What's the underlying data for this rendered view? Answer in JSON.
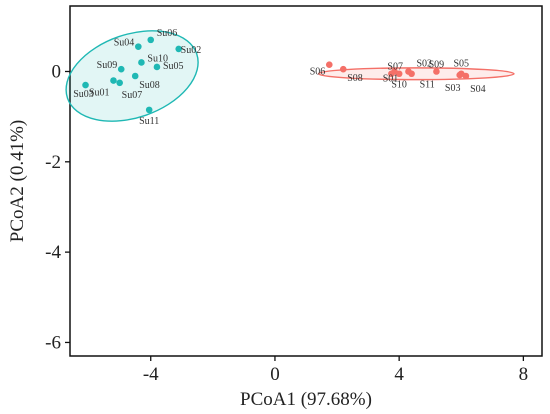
{
  "chart_data": {
    "type": "scatter",
    "title": "",
    "xlabel": "PCoA1 (97.68%)",
    "ylabel": "PCoA2 (0.41%)",
    "xlim": [
      -6.6,
      8.6
    ],
    "ylim": [
      -6.3,
      1.45
    ],
    "xticks": [
      -4,
      0,
      4,
      8
    ],
    "xtick_labels": [
      "-4",
      "0",
      "4",
      "8"
    ],
    "yticks": [
      0,
      -2,
      -4,
      -6
    ],
    "ytick_labels": [
      "0",
      "-2",
      "-4",
      "-6"
    ],
    "grid": false,
    "legend": "none",
    "series": [
      {
        "color": "#1fb8b4",
        "points": [
          {
            "label": "Su06",
            "x": -4.0,
            "y": 0.7
          },
          {
            "label": "Su04",
            "x": -4.4,
            "y": 0.55
          },
          {
            "label": "Su02",
            "x": -3.1,
            "y": 0.5
          },
          {
            "label": "Su10",
            "x": -4.3,
            "y": 0.2
          },
          {
            "label": "Su09",
            "x": -4.95,
            "y": 0.05
          },
          {
            "label": "Su05",
            "x": -3.8,
            "y": 0.1
          },
          {
            "label": "Su08",
            "x": -4.5,
            "y": -0.1
          },
          {
            "label": "Su01",
            "x": -5.2,
            "y": -0.2
          },
          {
            "label": "Su07",
            "x": -5.0,
            "y": -0.25
          },
          {
            "label": "Su03",
            "x": -6.1,
            "y": -0.3
          },
          {
            "label": "Su11",
            "x": -4.05,
            "y": -0.85
          }
        ],
        "ellipse": {
          "cx": -4.6,
          "cy": -0.1,
          "rx": 2.2,
          "ry": 0.92,
          "angle_deg": -19
        }
      },
      {
        "color": "#f47068",
        "points": [
          {
            "label": "S06",
            "x": 1.75,
            "y": 0.15
          },
          {
            "label": "S08",
            "x": 2.2,
            "y": 0.05
          },
          {
            "label": "S07",
            "x": 3.75,
            "y": -0.05
          },
          {
            "label": "S01",
            "x": 3.85,
            "y": 0.0
          },
          {
            "label": "S02",
            "x": 4.3,
            "y": 0.0
          },
          {
            "label": "S10",
            "x": 4.0,
            "y": -0.05
          },
          {
            "label": "S11",
            "x": 4.4,
            "y": -0.05
          },
          {
            "label": "S09",
            "x": 5.2,
            "y": 0.0
          },
          {
            "label": "S05",
            "x": 6.0,
            "y": -0.05
          },
          {
            "label": "S03",
            "x": 5.95,
            "y": -0.08
          },
          {
            "label": "S04",
            "x": 6.15,
            "y": -0.1
          }
        ],
        "ellipse": {
          "cx": 4.55,
          "cy": -0.05,
          "rx": 3.15,
          "ry": 0.13,
          "angle_deg": 0
        }
      }
    ]
  }
}
